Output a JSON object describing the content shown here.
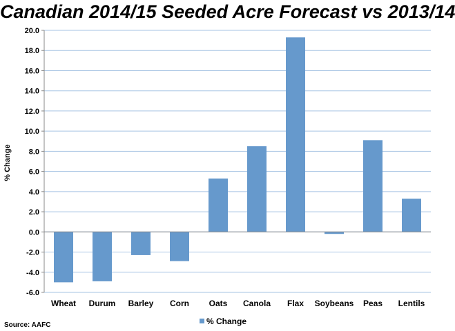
{
  "chart_data": {
    "type": "bar",
    "title": "Canadian 2014/15 Seeded Acre Forecast vs 2013/14",
    "ylabel": "% Change",
    "xlabel": "",
    "categories": [
      "Wheat",
      "Durum",
      "Barley",
      "Corn",
      "Oats",
      "Canola",
      "Flax",
      "Soybeans",
      "Peas",
      "Lentils"
    ],
    "series": [
      {
        "name": "% Change",
        "values": [
          -5.0,
          -4.9,
          -2.3,
          -2.9,
          5.3,
          8.5,
          19.3,
          -0.2,
          9.1,
          3.3
        ]
      }
    ],
    "ylim": [
      -6.0,
      20.0
    ],
    "yticks": [
      "-6.0",
      "-4.0",
      "-2.0",
      "0.0",
      "2.0",
      "4.0",
      "6.0",
      "8.0",
      "10.0",
      "12.0",
      "14.0",
      "16.0",
      "18.0",
      "20.0"
    ],
    "grid": true,
    "legend": "bottom",
    "bar_color": "#6699cc",
    "source": "Source: AAFC"
  }
}
